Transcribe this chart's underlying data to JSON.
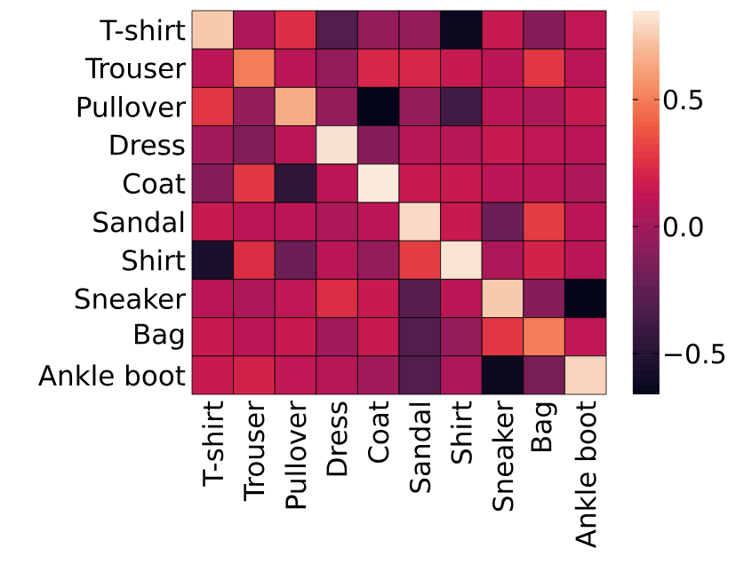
{
  "chart_data": {
    "type": "heatmap",
    "categories": [
      "T-shirt",
      "Trouser",
      "Pullover",
      "Dress",
      "Coat",
      "Sandal",
      "Shirt",
      "Sneaker",
      "Bag",
      "Ankle boot"
    ],
    "y_categories": [
      "T-shirt",
      "Trouser",
      "Pullover",
      "Dress",
      "Coat",
      "Sandal",
      "Shirt",
      "Sneaker",
      "Bag",
      "Ankle boot"
    ],
    "cells": [
      [
        0.75,
        0.05,
        0.25,
        -0.3,
        -0.05,
        -0.05,
        -0.62,
        0.15,
        -0.1,
        0.12
      ],
      [
        0.1,
        0.5,
        0.1,
        -0.05,
        0.22,
        0.22,
        0.15,
        0.1,
        0.28,
        0.1
      ],
      [
        0.28,
        -0.05,
        0.65,
        -0.05,
        -0.66,
        -0.05,
        -0.38,
        0.1,
        0.05,
        0.15
      ],
      [
        0.0,
        -0.12,
        0.1,
        0.82,
        -0.1,
        0.08,
        0.08,
        0.15,
        0.12,
        0.1
      ],
      [
        -0.1,
        0.28,
        -0.45,
        0.1,
        0.85,
        0.15,
        0.15,
        0.1,
        0.1,
        0.05
      ],
      [
        0.15,
        0.1,
        0.1,
        0.05,
        0.1,
        0.8,
        0.15,
        -0.2,
        0.3,
        0.1
      ],
      [
        -0.55,
        0.25,
        -0.2,
        0.1,
        -0.05,
        0.3,
        0.83,
        0.05,
        0.2,
        0.1
      ],
      [
        0.1,
        0.05,
        0.12,
        0.25,
        0.15,
        -0.28,
        0.1,
        0.75,
        -0.1,
        -0.65
      ],
      [
        0.15,
        0.1,
        0.15,
        0.0,
        0.15,
        -0.3,
        -0.05,
        0.28,
        0.5,
        0.12
      ],
      [
        0.15,
        0.2,
        0.12,
        0.08,
        0.0,
        -0.3,
        0.05,
        -0.62,
        -0.15,
        0.78
      ]
    ],
    "clim": [
      -0.66,
      0.85
    ],
    "cticks": [
      {
        "value": -0.5,
        "label": "−0.5"
      },
      {
        "value": 0,
        "label": "0.0"
      },
      {
        "value": 0.5,
        "label": "0.5"
      }
    ]
  }
}
